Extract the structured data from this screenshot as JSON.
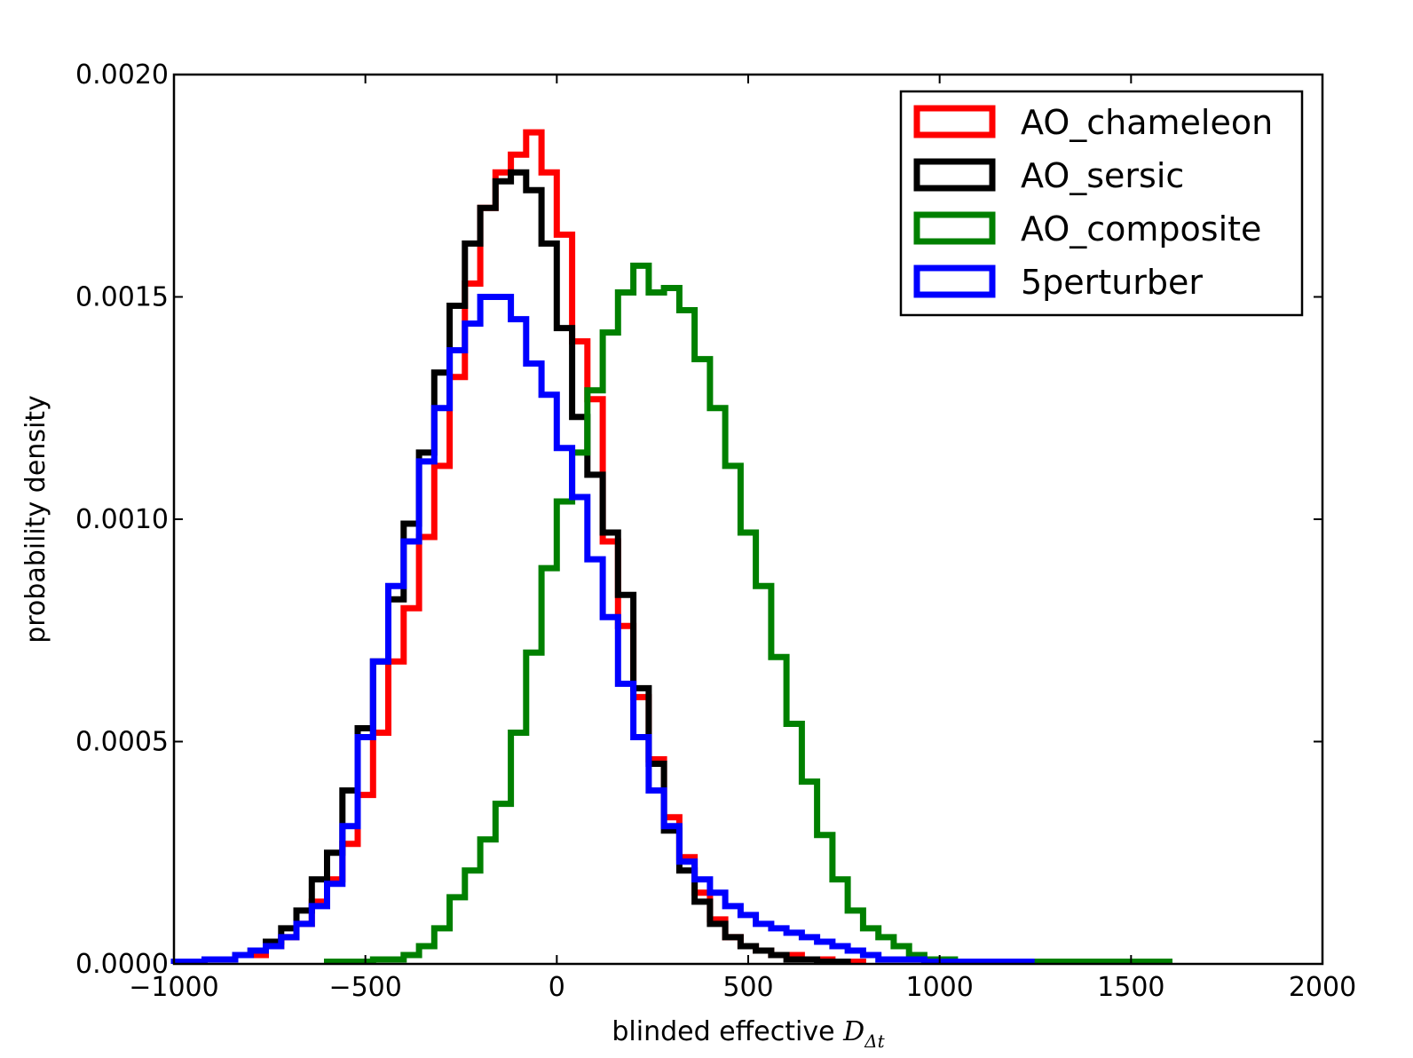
{
  "chart_data": {
    "type": "histogram",
    "xlabel": "blinded effective ",
    "xlabel_math": "D",
    "xlabel_sub": "Δt",
    "ylabel": "probability density",
    "xlim": [
      -1000,
      2000
    ],
    "ylim": [
      0,
      0.002
    ],
    "xticks": [
      -1000,
      -500,
      0,
      500,
      1000,
      1500,
      2000
    ],
    "xtick_labels": [
      "−1000",
      "−500",
      "0",
      "500",
      "1000",
      "1500",
      "2000"
    ],
    "yticks": [
      0,
      0.0005,
      0.001,
      0.0015,
      0.002
    ],
    "ytick_labels": [
      "0.0000",
      "0.0005",
      "0.0010",
      "0.0015",
      "0.0020"
    ],
    "grid": false,
    "legend_position": "top-right",
    "series": [
      {
        "name": "AO_chameleon",
        "color": "#ff0000",
        "bin_start": -1000,
        "bin_width": 40,
        "values": [
          5e-06,
          5e-06,
          1e-05,
          1e-05,
          2e-05,
          2e-05,
          4e-05,
          6e-05,
          9e-05,
          0.00014,
          0.00019,
          0.00027,
          0.00038,
          0.00052,
          0.00068,
          0.0008,
          0.00096,
          0.00112,
          0.00132,
          0.00153,
          0.0017,
          0.00178,
          0.00182,
          0.00187,
          0.00178,
          0.00164,
          0.0014,
          0.00127,
          0.00095,
          0.00076,
          0.0006,
          0.00046,
          0.00033,
          0.00024,
          0.00016,
          0.0001,
          6e-05,
          4e-05,
          3e-05,
          2e-05,
          2e-05,
          1e-05,
          1e-05,
          5e-06,
          5e-06
        ]
      },
      {
        "name": "AO_sersic",
        "color": "#000000",
        "bin_start": -1000,
        "bin_width": 40,
        "values": [
          5e-06,
          5e-06,
          1e-05,
          1e-05,
          2e-05,
          3e-05,
          5e-05,
          8e-05,
          0.00012,
          0.00019,
          0.00025,
          0.00039,
          0.00053,
          0.00068,
          0.00082,
          0.00099,
          0.00115,
          0.00133,
          0.00148,
          0.00162,
          0.0017,
          0.00176,
          0.00178,
          0.00174,
          0.00162,
          0.00143,
          0.00123,
          0.0011,
          0.00097,
          0.00083,
          0.00062,
          0.00045,
          0.0003,
          0.00021,
          0.00014,
          9e-05,
          6e-05,
          4e-05,
          3e-05,
          2e-05,
          1e-05,
          1e-05,
          5e-06,
          5e-06
        ]
      },
      {
        "name": "AO_composite",
        "color": "#008000",
        "bin_start": -600,
        "bin_width": 40,
        "values": [
          5e-06,
          5e-06,
          5e-06,
          1e-05,
          1e-05,
          2e-05,
          4e-05,
          8e-05,
          0.00015,
          0.00021,
          0.00028,
          0.00036,
          0.00052,
          0.0007,
          0.00089,
          0.00104,
          0.00115,
          0.00129,
          0.00142,
          0.00151,
          0.00157,
          0.00151,
          0.00152,
          0.00147,
          0.00136,
          0.00125,
          0.00112,
          0.00097,
          0.00085,
          0.00069,
          0.00054,
          0.00041,
          0.00029,
          0.00019,
          0.00012,
          8e-05,
          6e-05,
          4e-05,
          2e-05,
          1e-05,
          1e-05,
          5e-06,
          5e-06,
          5e-06,
          5e-06,
          5e-06,
          5e-06,
          5e-06,
          5e-06,
          5e-06,
          5e-06,
          5e-06,
          5e-06,
          5e-06,
          5e-06
        ]
      },
      {
        "name": "5perturber",
        "color": "#0000ff",
        "bin_start": -1000,
        "bin_width": 40,
        "values": [
          5e-06,
          5e-06,
          1e-05,
          1e-05,
          2e-05,
          3e-05,
          4e-05,
          6e-05,
          9e-05,
          0.00013,
          0.00018,
          0.00031,
          0.00051,
          0.00068,
          0.00085,
          0.00095,
          0.00113,
          0.00125,
          0.00138,
          0.00144,
          0.0015,
          0.0015,
          0.00145,
          0.00135,
          0.00128,
          0.00116,
          0.00105,
          0.00091,
          0.00078,
          0.00063,
          0.00051,
          0.00039,
          0.00031,
          0.00023,
          0.00019,
          0.00016,
          0.00013,
          0.00011,
          9e-05,
          8e-05,
          7e-05,
          6e-05,
          5e-05,
          4e-05,
          3e-05,
          2e-05,
          1e-05,
          1e-05,
          1e-05,
          5e-06,
          5e-06,
          5e-06,
          5e-06,
          5e-06,
          5e-06,
          5e-06
        ]
      }
    ]
  }
}
